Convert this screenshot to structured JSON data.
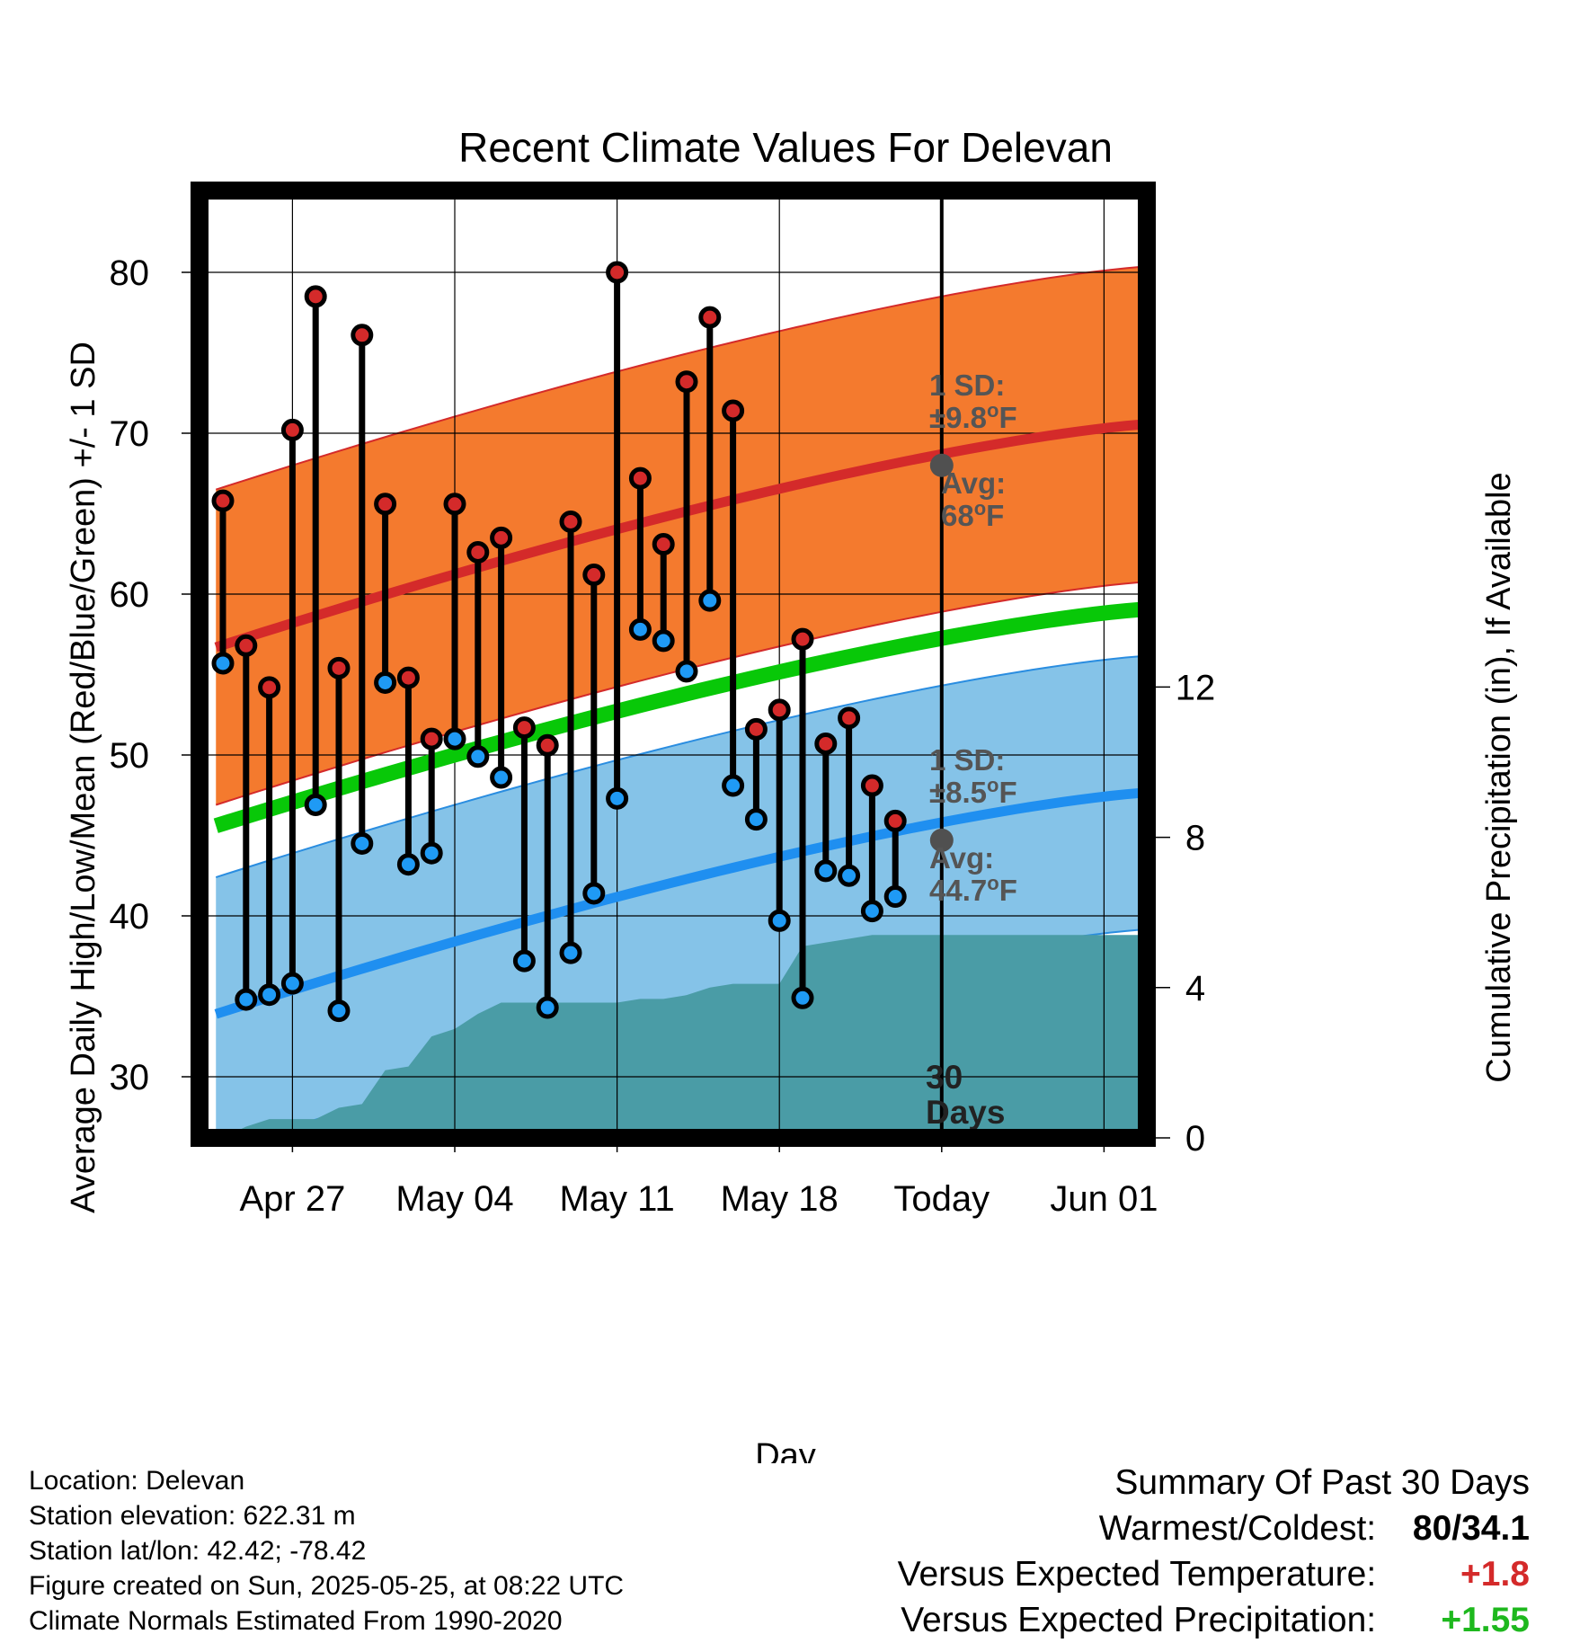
{
  "chart_data": {
    "type": "line",
    "title": "Recent Climate Values For Delevan",
    "xlabel": "Day",
    "ylabel": "Average Daily High/Low/Mean (Red/Blue/Green) +/- 1 SD",
    "y2label": "Cumulative Precipitation (in), If Available",
    "ylim": [
      26,
      85
    ],
    "y2lim": [
      0,
      24
    ],
    "y_ticks": [
      "30",
      "40",
      "50",
      "60",
      "70",
      "80"
    ],
    "y2_ticks": [
      "0",
      "4",
      "8",
      "12"
    ],
    "x_ticks": [
      {
        "day": 4,
        "label": "Apr 27"
      },
      {
        "day": 11,
        "label": "May 04"
      },
      {
        "day": 18,
        "label": "May 11"
      },
      {
        "day": 25,
        "label": "May 18"
      },
      {
        "day": 32,
        "label": "Today"
      },
      {
        "day": 39,
        "label": "Jun 01"
      }
    ],
    "x_range": [
      0.7,
      41.3
    ],
    "grid": true,
    "today_day": 32,
    "days": [
      1,
      2,
      3,
      4,
      5,
      6,
      7,
      8,
      9,
      10,
      11,
      12,
      13,
      14,
      15,
      16,
      17,
      18,
      19,
      20,
      21,
      22,
      23,
      24,
      25,
      26,
      27,
      28,
      29,
      30,
      31
    ],
    "highs": [
      65.8,
      56.8,
      54.2,
      70.2,
      78.5,
      55.4,
      76.1,
      65.6,
      54.8,
      51.0,
      65.6,
      62.6,
      63.5,
      51.7,
      50.6,
      64.5,
      61.2,
      80.0,
      67.2,
      63.1,
      73.2,
      77.2,
      71.4,
      51.6,
      52.8,
      57.2,
      50.7,
      52.3,
      48.1,
      45.9
    ],
    "lows": [
      55.7,
      34.8,
      35.1,
      35.8,
      46.9,
      34.1,
      44.5,
      54.5,
      43.2,
      43.9,
      51.0,
      49.9,
      48.6,
      37.2,
      34.3,
      37.7,
      41.4,
      47.3,
      57.8,
      57.1,
      55.2,
      59.6,
      48.1,
      46.0,
      39.7,
      34.9,
      42.8,
      42.5,
      40.3,
      41.2
    ],
    "normal_high": {
      "start": 56.7,
      "today": 68.0,
      "end": 70.6
    },
    "normal_low": {
      "start": 33.9,
      "today": 44.7,
      "end": 47.7
    },
    "normal_mean": {
      "start": 45.6,
      "end": 59.1
    },
    "high_sd": 9.8,
    "low_sd": 8.5,
    "precip_cumulative": [
      0.0,
      0.3,
      0.5,
      0.5,
      0.5,
      0.8,
      0.9,
      1.8,
      1.9,
      2.7,
      2.9,
      3.3,
      3.6,
      3.6,
      3.6,
      3.6,
      3.6,
      3.6,
      3.7,
      3.7,
      3.8,
      4.0,
      4.1,
      4.1,
      4.1,
      5.1,
      5.2,
      5.3,
      5.4,
      5.4,
      5.4
    ],
    "precip_fill_through_day": 41.3,
    "annotations": {
      "high_sd_label": "1 SD:",
      "high_sd_value": "±9.8",
      "high_avg_label": "Avg:",
      "high_avg_value": "68",
      "low_sd_label": "1 SD:",
      "low_sd_value": "±8.5",
      "low_avg_label": "Avg:",
      "low_avg_value": "44.7",
      "degree_mark": "o",
      "unit": "F",
      "days_count": "30",
      "days_word": "Days"
    },
    "colors": {
      "high_band": "#f47a2e",
      "high_line": "#d42a2a",
      "low_band": "#85c3e8",
      "low_line": "#1f8ff0",
      "low_band_edge": "#2a8de0",
      "mean_line": "#08c808",
      "precip": "#4a9ca6",
      "high_marker": "#d42a2a",
      "low_marker": "#1f9af5"
    }
  },
  "footer": {
    "location": "Location: Delevan",
    "elevation": "Station elevation: 622.31 m",
    "latlon": "Station lat/lon: 42.42; -78.42",
    "created": "Figure created on Sun, 2025-05-25, at 08:22 UTC",
    "normals": "Climate Normals Estimated From 1990-2020"
  },
  "summary": {
    "title": "Summary Of Past 30 Days",
    "warmest_label": "Warmest/Coldest:",
    "warmest_value": "80/34.1",
    "temp_label": "Versus Expected Temperature:",
    "temp_value": "+1.8",
    "temp_color": "#d42a2a",
    "precip_label": "Versus Expected Precipitation:",
    "precip_value": "+1.55",
    "precip_color": "#1eb81e"
  }
}
